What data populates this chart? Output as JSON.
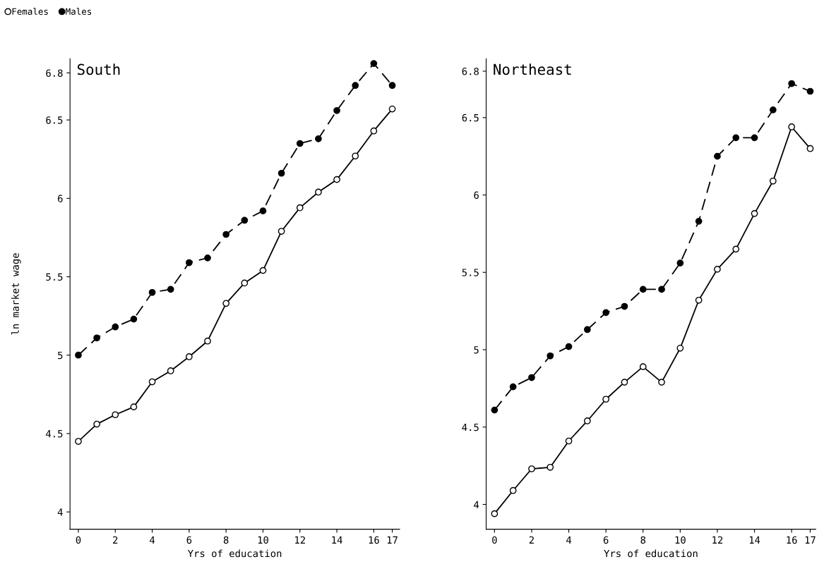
{
  "chart_data": [
    {
      "type": "line",
      "title": "South",
      "xlabel": "Yrs of education",
      "ylabel": "ln market wage",
      "x": [
        0,
        1,
        2,
        3,
        4,
        5,
        6,
        7,
        8,
        9,
        10,
        11,
        12,
        13,
        14,
        15,
        16,
        17
      ],
      "xlim": [
        -0.45,
        17.4
      ],
      "xticks": [
        0,
        2,
        4,
        6,
        8,
        10,
        12,
        14,
        16,
        17
      ],
      "ylim": [
        3.89,
        6.89
      ],
      "yticks": [
        4,
        4.5,
        5,
        5.5,
        6,
        6.5,
        6.8
      ],
      "grid": false,
      "legend": "top left",
      "series": [
        {
          "name": "Females",
          "color": "#000000",
          "marker": "circle",
          "line_style": "solid",
          "values": [
            4.45,
            4.56,
            4.62,
            4.67,
            4.83,
            4.9,
            4.99,
            5.09,
            5.33,
            5.46,
            5.54,
            5.79,
            5.94,
            6.04,
            6.12,
            6.27,
            6.43,
            6.57
          ]
        },
        {
          "name": "Males",
          "color": "#000000",
          "marker": "circle",
          "line_style": "dashed",
          "values": [
            5.0,
            5.11,
            5.18,
            5.23,
            5.4,
            5.42,
            5.59,
            5.62,
            5.77,
            5.86,
            5.92,
            6.16,
            6.35,
            6.38,
            6.56,
            6.72,
            6.86,
            6.72
          ]
        }
      ]
    },
    {
      "type": "line",
      "title": "Northeast",
      "xlabel": "Yrs of education",
      "x": [
        0,
        1,
        2,
        3,
        4,
        5,
        6,
        7,
        8,
        9,
        10,
        11,
        12,
        13,
        14,
        15,
        16,
        17
      ],
      "xlim": [
        -0.45,
        17.3
      ],
      "xticks": [
        0,
        2,
        4,
        6,
        8,
        10,
        12,
        14,
        16,
        17
      ],
      "ylim": [
        3.84,
        6.88
      ],
      "yticks": [
        4,
        4.5,
        5,
        5.5,
        6,
        6.5,
        6.8
      ],
      "grid": false,
      "series": [
        {
          "color": "#000000",
          "marker": "circle",
          "line_style": "solid",
          "values": [
            3.94,
            4.09,
            4.23,
            4.24,
            4.41,
            4.54,
            4.68,
            4.79,
            4.89,
            4.79,
            5.01,
            5.32,
            5.52,
            5.65,
            5.88,
            6.09,
            6.44,
            6.3
          ]
        },
        {
          "color": "#000000",
          "marker": "circle",
          "line_style": "dashed",
          "values": [
            4.61,
            4.76,
            4.82,
            4.96,
            5.02,
            5.13,
            5.24,
            5.28,
            5.39,
            5.39,
            5.56,
            5.83,
            6.25,
            6.37,
            6.37,
            6.55,
            6.72,
            6.67
          ]
        }
      ]
    }
  ]
}
